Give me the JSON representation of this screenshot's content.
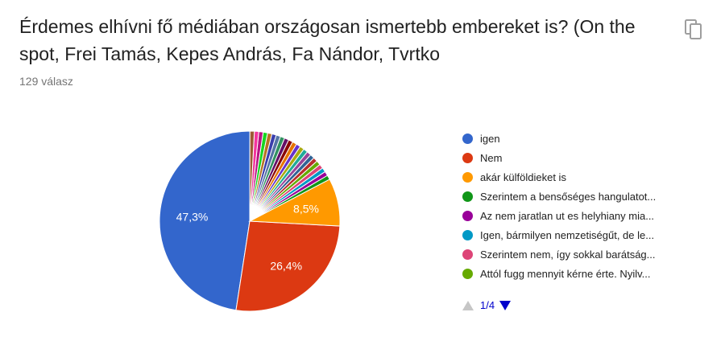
{
  "question": {
    "title": "Érdemes elhívni fő médiában országosan ismertebb embereket is? (On the spot, Frei Tamás, Kepes András, Fa Nándor, Tvrtko",
    "response_count": "129 válasz"
  },
  "icons": {
    "copy": "copy-icon",
    "prev_page": "triangle-up-icon",
    "next_page": "triangle-down-icon"
  },
  "chart_data": {
    "type": "pie",
    "slices": [
      {
        "label": "igen",
        "value": 47.3,
        "color": "#3366cc",
        "data_label": "47,3%"
      },
      {
        "label": "Nem",
        "value": 26.4,
        "color": "#dc3912",
        "data_label": "26,4%"
      },
      {
        "label": "akár külföldieket is",
        "value": 8.5,
        "color": "#ff9900",
        "data_label": "8,5%"
      },
      {
        "label": "Szerintem a bensőséges hangulatot...",
        "value": 0.78,
        "color": "#109618",
        "data_label": ""
      },
      {
        "label": "Az nem jaratlan ut es helyhiany mia...",
        "value": 0.78,
        "color": "#990099",
        "data_label": ""
      },
      {
        "label": "Igen, bármilyen nemzetiségűt, de le...",
        "value": 0.78,
        "color": "#0099c6",
        "data_label": ""
      },
      {
        "label": "Szerintem nem, így sokkal barátság...",
        "value": 0.78,
        "color": "#dd4477",
        "data_label": ""
      },
      {
        "label": "Attól fugg mennyit kérne érte. Nyilv...",
        "value": 0.78,
        "color": "#66aa00",
        "data_label": ""
      },
      {
        "label": "",
        "value": 0.78,
        "color": "#b82e2e",
        "data_label": ""
      },
      {
        "label": "",
        "value": 0.78,
        "color": "#316395",
        "data_label": ""
      },
      {
        "label": "",
        "value": 0.78,
        "color": "#994499",
        "data_label": ""
      },
      {
        "label": "",
        "value": 0.78,
        "color": "#22aa99",
        "data_label": ""
      },
      {
        "label": "",
        "value": 0.78,
        "color": "#aaaa11",
        "data_label": ""
      },
      {
        "label": "",
        "value": 0.78,
        "color": "#6633cc",
        "data_label": ""
      },
      {
        "label": "",
        "value": 0.78,
        "color": "#e67300",
        "data_label": ""
      },
      {
        "label": "",
        "value": 0.78,
        "color": "#8b0707",
        "data_label": ""
      },
      {
        "label": "",
        "value": 0.78,
        "color": "#651067",
        "data_label": ""
      },
      {
        "label": "",
        "value": 0.78,
        "color": "#329262",
        "data_label": ""
      },
      {
        "label": "",
        "value": 0.78,
        "color": "#5574a6",
        "data_label": ""
      },
      {
        "label": "",
        "value": 0.78,
        "color": "#3b3eac",
        "data_label": ""
      },
      {
        "label": "",
        "value": 0.78,
        "color": "#b77322",
        "data_label": ""
      },
      {
        "label": "",
        "value": 0.78,
        "color": "#16d620",
        "data_label": ""
      },
      {
        "label": "",
        "value": 0.78,
        "color": "#b91383",
        "data_label": ""
      },
      {
        "label": "",
        "value": 0.78,
        "color": "#f4359e",
        "data_label": ""
      },
      {
        "label": "",
        "value": 0.78,
        "color": "#9c5935",
        "data_label": ""
      }
    ],
    "legend_position": "right"
  },
  "legend": {
    "items": [
      {
        "label": "igen",
        "color": "#3366cc"
      },
      {
        "label": "Nem",
        "color": "#dc3912"
      },
      {
        "label": "akár külföldieket is",
        "color": "#ff9900"
      },
      {
        "label": "Szerintem a bensőséges hangulatot...",
        "color": "#109618"
      },
      {
        "label": "Az nem jaratlan ut es helyhiany mia...",
        "color": "#990099"
      },
      {
        "label": "Igen, bármilyen nemzetiségűt, de le...",
        "color": "#0099c6"
      },
      {
        "label": "Szerintem nem, így sokkal barátság...",
        "color": "#dd4477"
      },
      {
        "label": "Attól fugg mennyit kérne érte. Nyilv...",
        "color": "#66aa00"
      }
    ],
    "pager": {
      "label": "1/4"
    }
  }
}
